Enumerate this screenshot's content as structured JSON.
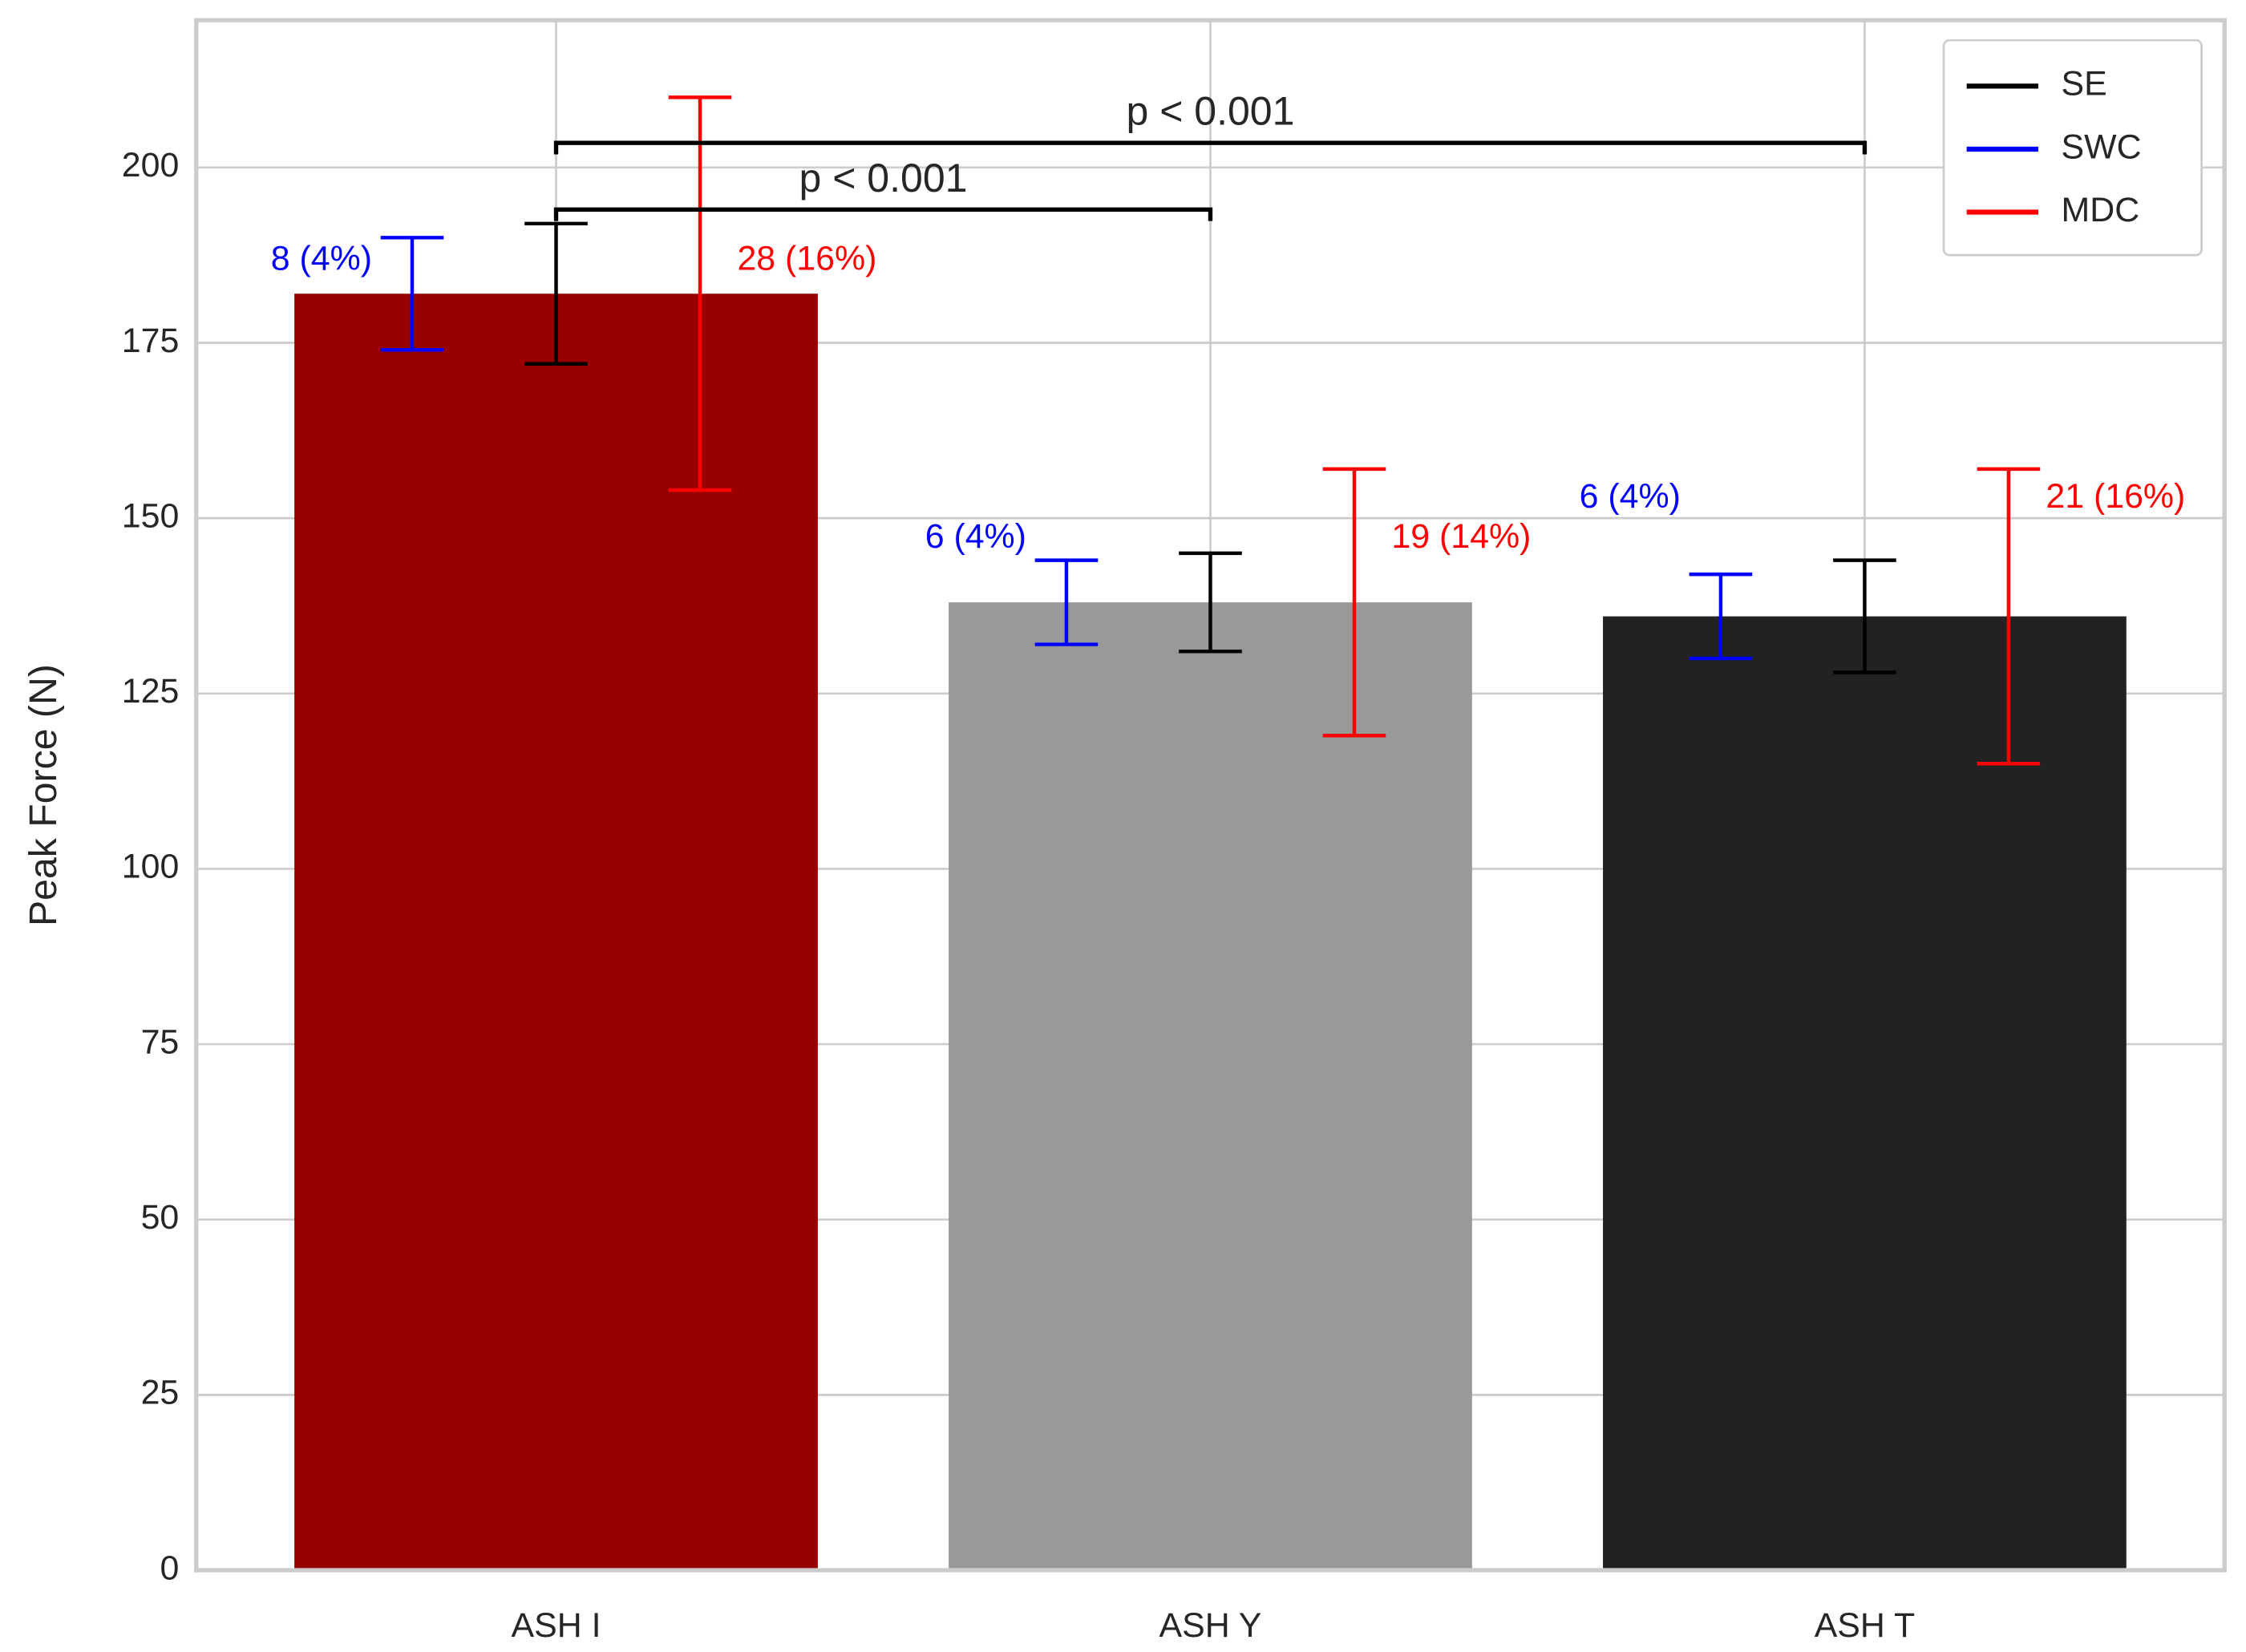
{
  "chart_data": {
    "type": "bar",
    "ylabel": "Peak Force (N)",
    "categories": [
      "ASH I",
      "ASH Y",
      "ASH T"
    ],
    "values": [
      182,
      138,
      136
    ],
    "colors": [
      "#990000",
      "#999999",
      "#222222"
    ],
    "error_bars": [
      {
        "name": "SE",
        "color": "#000000",
        "errors": [
          10,
          7,
          8
        ]
      },
      {
        "name": "SWC",
        "color": "#0000ff",
        "errors": [
          8,
          6,
          6
        ],
        "value_labels": [
          "8 (4%)",
          "6 (4%)",
          "6 (4%)"
        ]
      },
      {
        "name": "MDC",
        "color": "#ff0000",
        "errors": [
          28,
          19,
          21
        ],
        "value_labels": [
          "28 (16%)",
          "19 (14%)",
          "21 (16%)"
        ]
      }
    ],
    "annotations": [
      {
        "text": "p < 0.001",
        "from": "ASH I",
        "to": "ASH Y",
        "y": 194
      },
      {
        "text": "p < 0.001",
        "from": "ASH I",
        "to": "ASH T",
        "y": 203.5
      }
    ],
    "xlim": [
      -0.55,
      2.55
    ],
    "ylim": [
      0,
      221
    ],
    "yticks": [
      0,
      25,
      50,
      75,
      100,
      125,
      150,
      175,
      200
    ],
    "grid": true,
    "legend": "upper right"
  }
}
